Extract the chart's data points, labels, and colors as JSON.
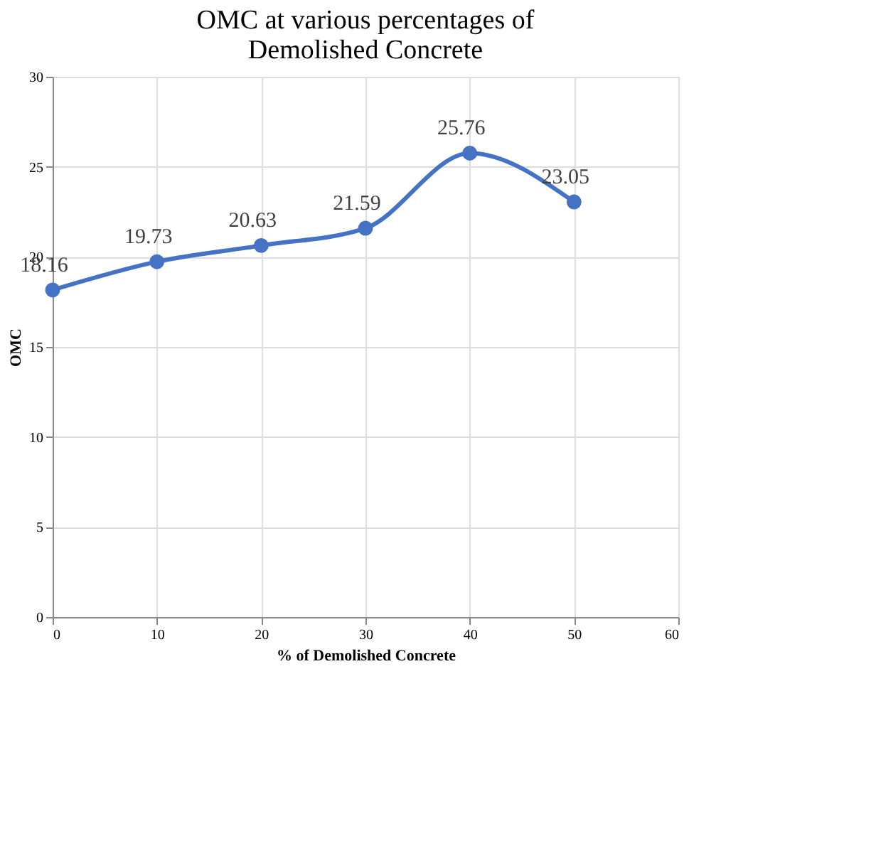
{
  "chart_data": {
    "type": "line",
    "title": "OMC at various percentages of Demolished Concrete",
    "xlabel": "% of Demolished Concrete",
    "ylabel": "OMC",
    "x": [
      0,
      10,
      20,
      30,
      40,
      50
    ],
    "series": [
      {
        "color": "#4472c4",
        "values": [
          18.16,
          19.73,
          20.63,
          21.59,
          25.76,
          23.05
        ]
      }
    ],
    "xlim": [
      0,
      60
    ],
    "xticks": [
      0,
      10,
      20,
      30,
      40,
      50,
      60
    ],
    "ylim": [
      0,
      30
    ],
    "yticks": [
      0,
      5,
      10,
      15,
      20,
      25,
      30
    ],
    "grid": true,
    "marker": "circle",
    "line_style": "solid",
    "data_labels": true
  }
}
